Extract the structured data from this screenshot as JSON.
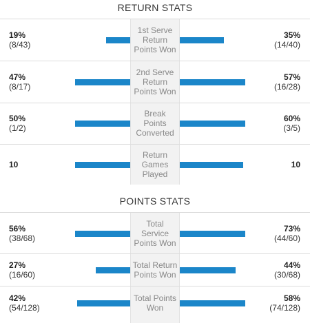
{
  "return_stats": {
    "title": "RETURN STATS",
    "rows": [
      {
        "label_lines": [
          "1st Serve",
          "Return",
          "Points Won"
        ],
        "left_pct": "19%",
        "left_count": "(8/43)",
        "right_pct": "35%",
        "right_count": "(14/40)",
        "left_fraction": 0.19,
        "right_fraction": 0.35
      },
      {
        "label_lines": [
          "2nd Serve",
          "Return",
          "Points Won"
        ],
        "left_pct": "47%",
        "left_count": "(8/17)",
        "right_pct": "57%",
        "right_count": "(16/28)",
        "left_fraction": 0.47,
        "right_fraction": 0.57
      },
      {
        "label_lines": [
          "Break",
          "Points",
          "Converted"
        ],
        "left_pct": "50%",
        "left_count": "(1/2)",
        "right_pct": "60%",
        "right_count": "(3/5)",
        "left_fraction": 0.5,
        "right_fraction": 0.6
      },
      {
        "label_lines": [
          "Return",
          "Games",
          "Played"
        ],
        "left_pct": "10",
        "left_count": "",
        "right_pct": "10",
        "right_count": "",
        "left_fraction": 0.5,
        "right_fraction": 0.5
      }
    ]
  },
  "points_stats": {
    "title": "POINTS STATS",
    "rows": [
      {
        "label_lines": [
          "Total",
          "Service",
          "Points Won"
        ],
        "left_pct": "56%",
        "left_count": "(38/68)",
        "right_pct": "73%",
        "right_count": "(44/60)",
        "left_fraction": 0.56,
        "right_fraction": 0.73
      },
      {
        "label_lines": [
          "Total Return",
          "Points Won"
        ],
        "left_pct": "27%",
        "left_count": "(16/60)",
        "right_pct": "44%",
        "right_count": "(30/68)",
        "left_fraction": 0.27,
        "right_fraction": 0.44
      },
      {
        "label_lines": [
          "Total Points",
          "Won"
        ],
        "left_pct": "42%",
        "left_count": "(54/128)",
        "right_pct": "58%",
        "right_count": "(74/128)",
        "left_fraction": 0.42,
        "right_fraction": 0.58
      }
    ]
  },
  "colors": {
    "bar": "#1b86c9",
    "center_column": "#f2f2f2",
    "divider": "#dcdcdc"
  }
}
